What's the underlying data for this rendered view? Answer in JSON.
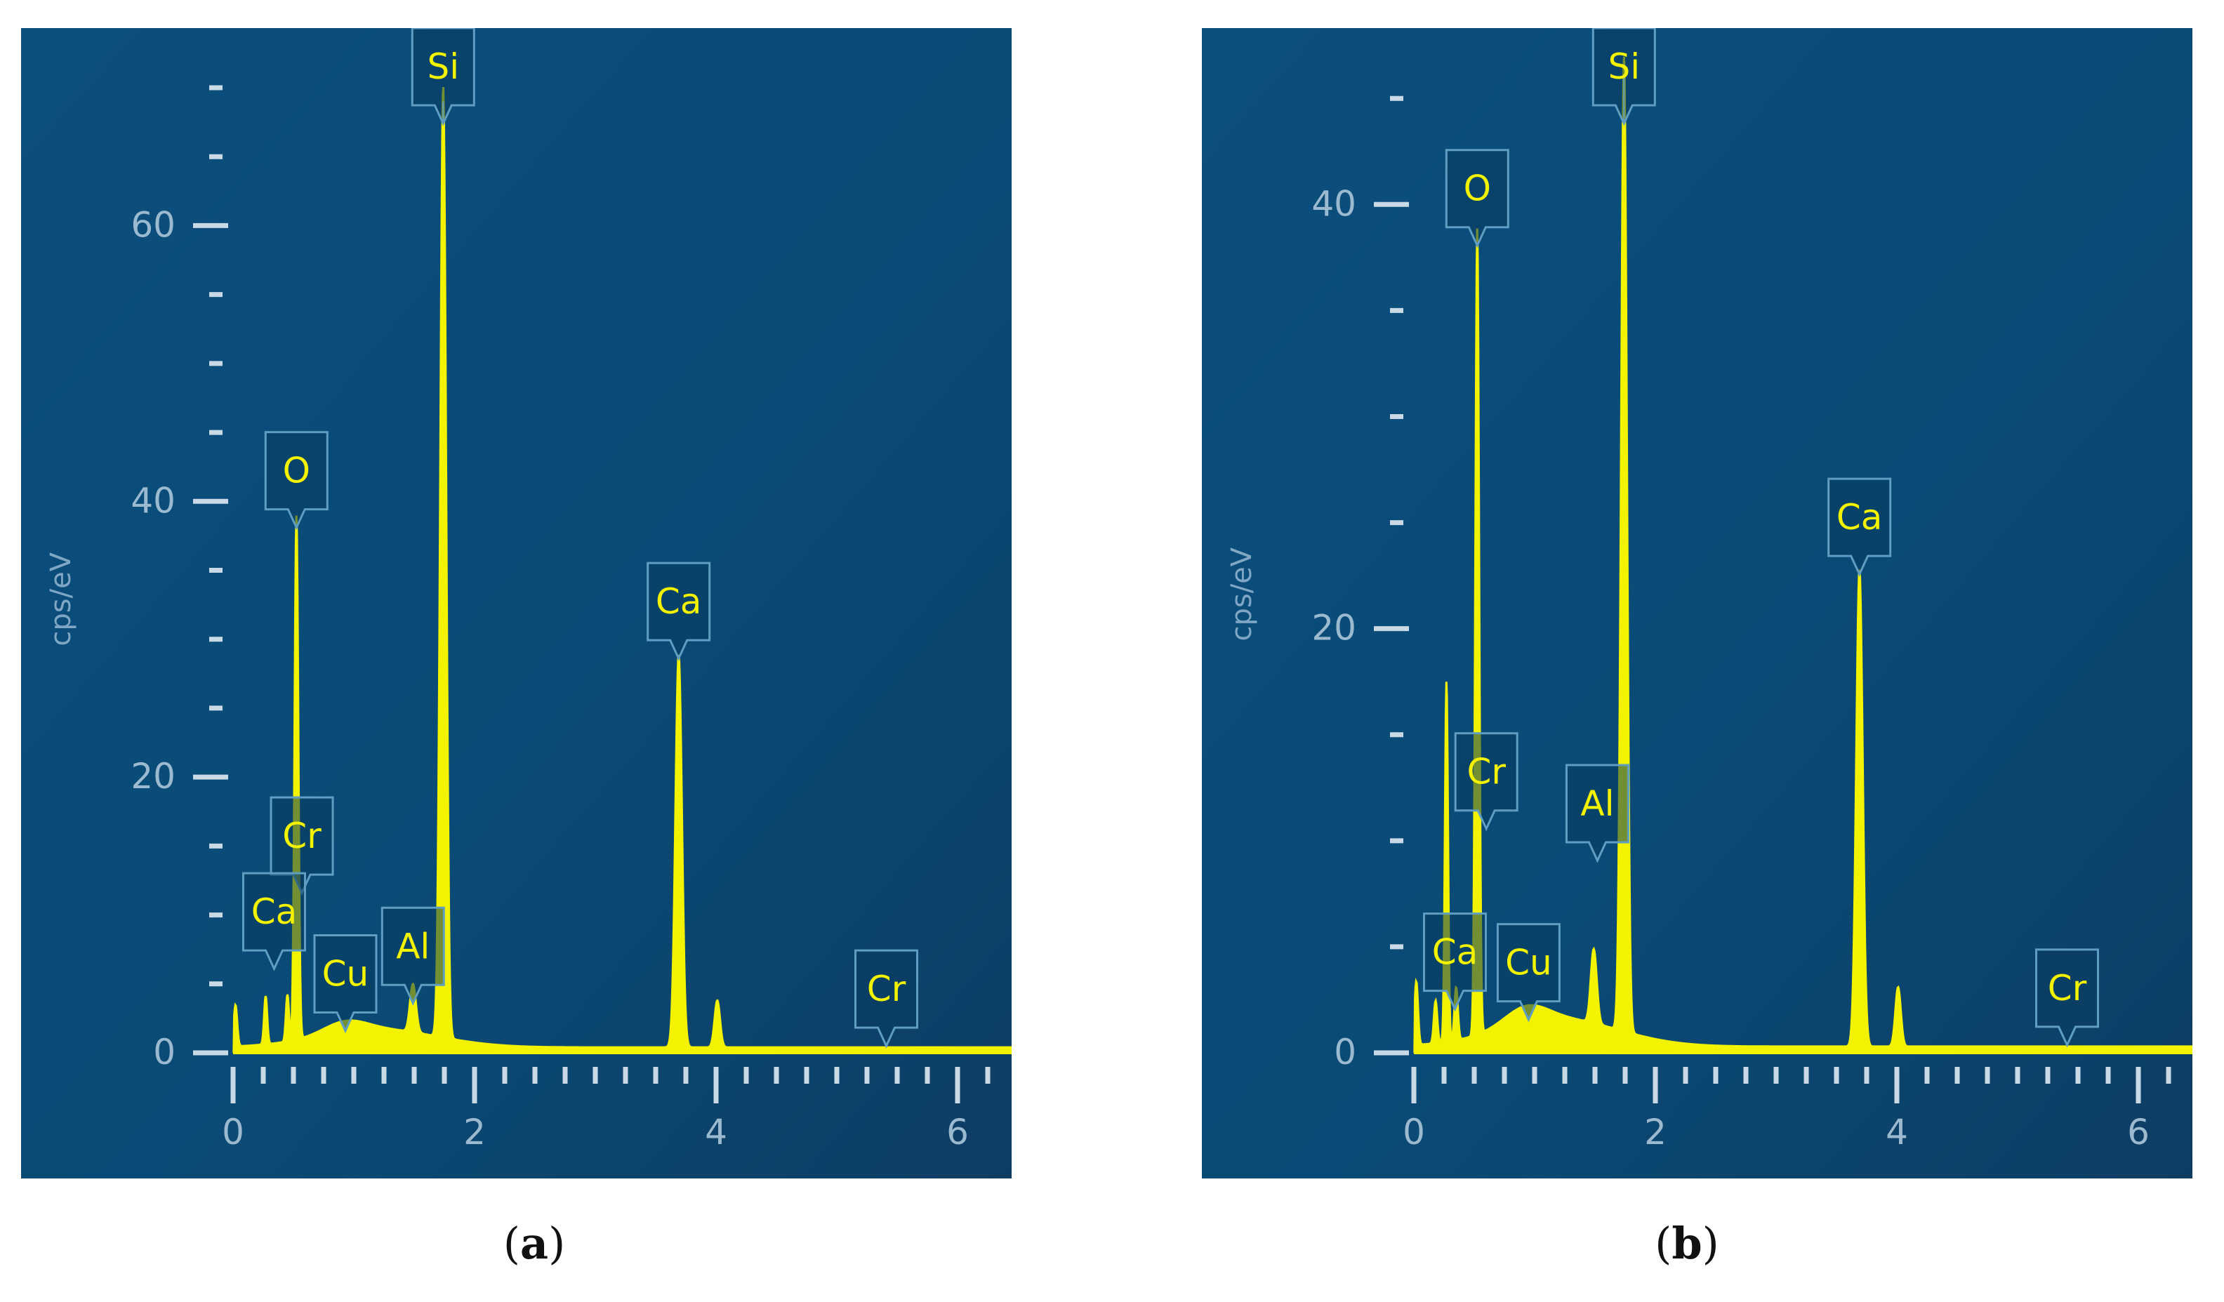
{
  "chart_data": [
    {
      "type": "line",
      "panel": "a",
      "caption": "a",
      "ylabel": "cps/eV",
      "xlabel": "",
      "xlim": [
        0,
        6.5
      ],
      "ylim": [
        0,
        70
      ],
      "x_ticks": [
        "0",
        "2",
        "4",
        "6"
      ],
      "y_ticks": [
        "0",
        "20",
        "40",
        "60"
      ],
      "background": "#0a4a75",
      "spectrum_color": "#f3f300",
      "baseline": 0.4,
      "peaks": [
        {
          "x": 0.02,
          "y": 3.0,
          "w": 0.02
        },
        {
          "x": 0.27,
          "y": 3.5,
          "w": 0.018
        },
        {
          "x": 0.45,
          "y": 3.4,
          "w": 0.018
        },
        {
          "x": 0.525,
          "y": 38.0,
          "w": 0.022
        },
        {
          "x": 0.93,
          "y": 0.8,
          "w": 0.25
        },
        {
          "x": 1.49,
          "y": 3.5,
          "w": 0.035
        },
        {
          "x": 1.74,
          "y": 69.0,
          "w": 0.034
        },
        {
          "x": 3.69,
          "y": 28.5,
          "w": 0.038
        },
        {
          "x": 4.01,
          "y": 3.4,
          "w": 0.032
        }
      ],
      "labels": [
        {
          "text": "Si",
          "x": 1.74,
          "y": 69.0
        },
        {
          "text": "O",
          "x": 0.525,
          "y": 38.0
        },
        {
          "text": "Ca",
          "x": 3.69,
          "y": 28.5
        },
        {
          "text": "Cr",
          "x": 0.57,
          "y": 11.5
        },
        {
          "text": "Ca",
          "x": 0.34,
          "y": 6.0
        },
        {
          "text": "Al",
          "x": 1.49,
          "y": 3.5
        },
        {
          "text": "Cu",
          "x": 0.93,
          "y": 1.5
        },
        {
          "text": "Cr",
          "x": 5.41,
          "y": 0.4
        }
      ]
    },
    {
      "type": "line",
      "panel": "b",
      "caption": "b",
      "ylabel": "cps/eV",
      "xlabel": "",
      "xlim": [
        0,
        6.5
      ],
      "ylim": [
        0,
        46
      ],
      "x_ticks": [
        "0",
        "2",
        "4",
        "6"
      ],
      "y_ticks": [
        "0",
        "20",
        "40"
      ],
      "background": "#0a4a75",
      "spectrum_color": "#f3f300",
      "baseline": 0.3,
      "peaks": [
        {
          "x": 0.02,
          "y": 3.0,
          "w": 0.02
        },
        {
          "x": 0.18,
          "y": 2.0,
          "w": 0.02
        },
        {
          "x": 0.27,
          "y": 17.0,
          "w": 0.018
        },
        {
          "x": 0.35,
          "y": 2.5,
          "w": 0.02
        },
        {
          "x": 0.525,
          "y": 38.0,
          "w": 0.022
        },
        {
          "x": 0.93,
          "y": 0.8,
          "w": 0.25
        },
        {
          "x": 1.49,
          "y": 3.5,
          "w": 0.035
        },
        {
          "x": 1.74,
          "y": 46.0,
          "w": 0.034
        },
        {
          "x": 3.69,
          "y": 22.5,
          "w": 0.038
        },
        {
          "x": 4.01,
          "y": 2.8,
          "w": 0.032
        }
      ],
      "labels": [
        {
          "text": "Si",
          "x": 1.74,
          "y": 46.0
        },
        {
          "text": "O",
          "x": 0.525,
          "y": 38.0
        },
        {
          "text": "Ca",
          "x": 3.69,
          "y": 22.5
        },
        {
          "text": "Cr",
          "x": 0.6,
          "y": 10.5
        },
        {
          "text": "Al",
          "x": 1.52,
          "y": 9.0
        },
        {
          "text": "Cu",
          "x": 0.95,
          "y": 1.5
        },
        {
          "text": "Ca",
          "x": 0.34,
          "y": 2.0
        },
        {
          "text": "Cr",
          "x": 5.41,
          "y": 0.3
        }
      ]
    }
  ]
}
